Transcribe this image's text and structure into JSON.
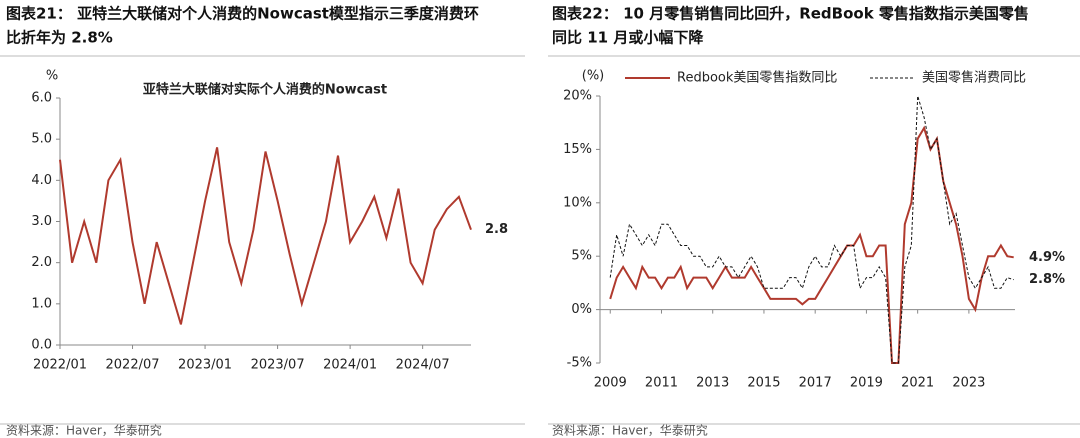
{
  "chart_data": [
    {
      "type": "line",
      "heading": [
        "图表21：  亚特兰大联储对个人消费的Nowcast模型指示三季度消费环",
        "比折年为 2.8%"
      ],
      "title": "亚特兰大联储对实际个人消费的Nowcast",
      "y_label": "%",
      "source": "资料来源：Haver，华泰研究",
      "x": [
        "2022/01",
        "2022/02",
        "2022/03",
        "2022/04",
        "2022/05",
        "2022/06",
        "2022/07",
        "2022/08",
        "2022/09",
        "2022/10",
        "2022/11",
        "2022/12",
        "2023/01",
        "2023/02",
        "2023/03",
        "2023/04",
        "2023/05",
        "2023/06",
        "2023/07",
        "2023/08",
        "2023/09",
        "2023/10",
        "2023/11",
        "2023/12",
        "2024/01",
        "2024/02",
        "2024/03",
        "2024/04",
        "2024/05",
        "2024/06",
        "2024/07",
        "2024/08",
        "2024/09",
        "2024/10",
        "2024/11"
      ],
      "xticks": [
        "2022/01",
        "2022/07",
        "2023/01",
        "2023/07",
        "2024/01",
        "2024/07"
      ],
      "series": [
        {
          "name": "Nowcast",
          "color": "#b03a2e",
          "values": [
            4.5,
            2.0,
            3.0,
            2.0,
            4.0,
            4.5,
            2.5,
            1.0,
            2.5,
            1.5,
            0.5,
            2.0,
            3.5,
            4.8,
            2.5,
            1.5,
            2.8,
            4.7,
            3.5,
            2.2,
            1.0,
            2.0,
            3.0,
            4.6,
            2.5,
            3.0,
            3.6,
            2.6,
            3.8,
            2.0,
            1.5,
            2.8,
            3.3,
            3.6,
            2.8
          ]
        }
      ],
      "ylim": [
        0,
        6
      ],
      "yticks": [
        {
          "value": 0,
          "label": "0.0"
        },
        {
          "value": 1,
          "label": "1.0"
        },
        {
          "value": 2,
          "label": "2.0"
        },
        {
          "value": 3,
          "label": "3.0"
        },
        {
          "value": 4,
          "label": "4.0"
        },
        {
          "value": 5,
          "label": "5.0"
        },
        {
          "value": 6,
          "label": "6.0"
        }
      ],
      "annotations": [
        {
          "text": "2.8",
          "y": 2.8,
          "color": "#b03a2e"
        }
      ]
    },
    {
      "type": "line",
      "heading": [
        "图表22：  10 月零售销售同比回升，RedBook 零售指数指示美国零售",
        "同比 11 月或小幅下降"
      ],
      "y_label": "(%)",
      "source": "资料来源：Haver，华泰研究",
      "x": [
        2009,
        2009.25,
        2009.5,
        2009.75,
        2010,
        2010.25,
        2010.5,
        2010.75,
        2011,
        2011.25,
        2011.5,
        2011.75,
        2012,
        2012.25,
        2012.5,
        2012.75,
        2013,
        2013.25,
        2013.5,
        2013.75,
        2014,
        2014.25,
        2014.5,
        2014.75,
        2015,
        2015.25,
        2015.5,
        2015.75,
        2016,
        2016.25,
        2016.5,
        2016.75,
        2017,
        2017.25,
        2017.5,
        2017.75,
        2018,
        2018.25,
        2018.5,
        2018.75,
        2019,
        2019.25,
        2019.5,
        2019.75,
        2020,
        2020.25,
        2020.5,
        2020.75,
        2021,
        2021.25,
        2021.5,
        2021.75,
        2022,
        2022.25,
        2022.5,
        2022.75,
        2023,
        2023.25,
        2023.5,
        2023.75,
        2024,
        2024.25,
        2024.5,
        2024.75
      ],
      "xlim": [
        2008.6,
        2024.8
      ],
      "xticks": [
        2009,
        2011,
        2013,
        2015,
        2017,
        2019,
        2021,
        2023
      ],
      "series": [
        {
          "name": "Redbook美国零售指数同比",
          "color": "#b03a2e",
          "dash": false,
          "values": [
            1,
            3,
            4,
            3,
            2,
            4,
            3,
            3,
            2,
            3,
            3,
            4,
            2,
            3,
            3,
            3,
            2,
            3,
            4,
            3,
            3,
            3,
            4,
            3,
            2,
            1,
            1,
            1,
            1,
            1,
            0.5,
            1,
            1,
            2,
            3,
            4,
            5,
            6,
            6,
            7,
            5,
            5,
            6,
            6,
            -5,
            -5,
            8,
            10,
            16,
            17,
            15,
            16,
            12,
            10,
            8,
            5,
            1,
            0,
            3,
            5,
            5,
            6,
            5,
            4.9
          ]
        },
        {
          "name": "美国零售消费同比",
          "color": "#111111",
          "dash": true,
          "values": [
            3,
            7,
            5,
            8,
            7,
            6,
            7,
            6,
            8,
            8,
            7,
            6,
            6,
            5,
            5,
            4,
            4,
            5,
            4,
            4,
            3,
            4,
            5,
            4,
            2,
            2,
            2,
            2,
            3,
            3,
            2,
            4,
            5,
            4,
            4,
            6,
            5,
            6,
            6,
            2,
            3,
            3,
            4,
            3,
            -5,
            -5,
            4,
            6,
            20,
            18,
            15,
            16,
            12,
            8,
            9,
            6,
            3,
            2,
            3,
            4,
            2,
            2,
            3,
            2.8
          ]
        }
      ],
      "ylim": [
        -5,
        20
      ],
      "yticks": [
        {
          "value": -5,
          "label": "-5%"
        },
        {
          "value": 0,
          "label": "0%"
        },
        {
          "value": 5,
          "label": "5%"
        },
        {
          "value": 10,
          "label": "10%"
        },
        {
          "value": 15,
          "label": "15%"
        },
        {
          "value": 20,
          "label": "20%"
        }
      ],
      "annotations": [
        {
          "text": "4.9%",
          "y": 4.9,
          "color": "#b03a2e"
        },
        {
          "text": "2.8%",
          "y": 2.8,
          "color": "#111111"
        }
      ]
    }
  ]
}
